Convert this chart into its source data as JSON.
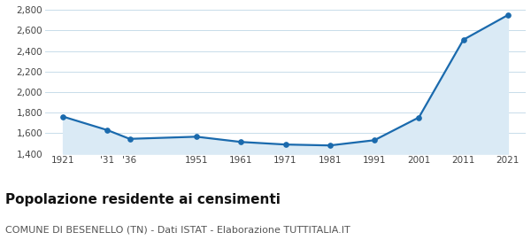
{
  "years": [
    1921,
    1931,
    1936,
    1951,
    1961,
    1971,
    1981,
    1991,
    2001,
    2011,
    2021
  ],
  "x_labels": [
    "1921",
    "'31",
    "'36",
    "1951",
    "1961",
    "1971",
    "1981",
    "1991",
    "2001",
    "2011",
    "2021"
  ],
  "population": [
    1762,
    1630,
    1545,
    1566,
    1515,
    1490,
    1481,
    1532,
    1754,
    2510,
    2750
  ],
  "ylim": [
    1400,
    2800
  ],
  "yticks": [
    1400,
    1600,
    1800,
    2000,
    2200,
    2400,
    2600,
    2800
  ],
  "line_color": "#1a6aad",
  "fill_color": "#daeaf5",
  "marker_color": "#1a6aad",
  "grid_color": "#c8dcea",
  "bg_color": "#ffffff",
  "title": "Popolazione residente ai censimenti",
  "subtitle": "COMUNE DI BESENELLO (TN) - Dati ISTAT - Elaborazione TUTTITALIA.IT",
  "title_fontsize": 11,
  "subtitle_fontsize": 8
}
